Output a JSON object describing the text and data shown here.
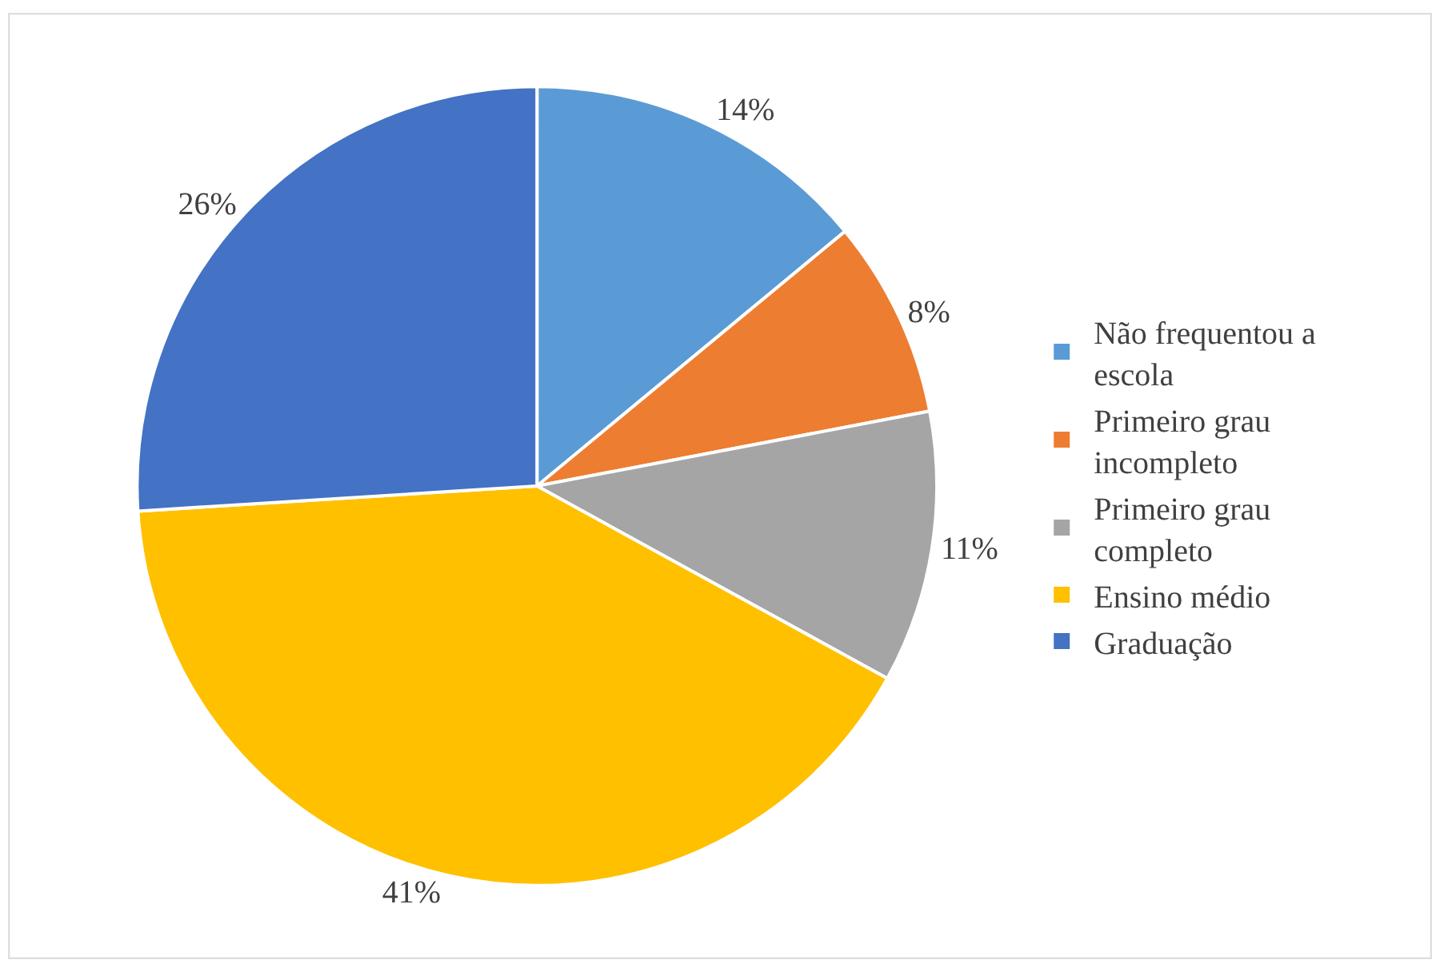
{
  "chart_data": {
    "type": "pie",
    "categories": [
      "Não frequentou a escola",
      "Primeiro grau incompleto",
      "Primeiro grau completo",
      "Ensino médio",
      "Graduação"
    ],
    "values": [
      14,
      8,
      11,
      41,
      26
    ],
    "value_labels": [
      "14%",
      "8%",
      "11%",
      "41%",
      "26%"
    ],
    "colors": [
      "#5b9bd5",
      "#ed7d31",
      "#a5a5a5",
      "#ffc000",
      "#4472c4"
    ],
    "legend": "right"
  }
}
